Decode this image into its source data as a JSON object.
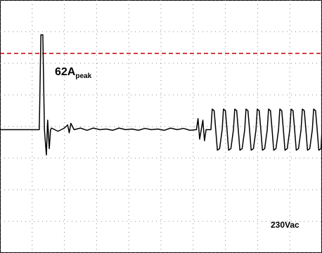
{
  "chart_data": {
    "type": "line",
    "x": [
      0,
      1.2,
      1.22,
      1.27,
      1.33,
      1.38,
      1.44,
      1.48,
      1.53,
      1.57,
      1.6,
      1.8,
      2.0,
      2.1,
      2.15,
      2.2,
      2.3,
      2.5,
      2.7,
      2.9,
      3.1,
      3.3,
      3.5,
      3.7,
      3.9,
      4.1,
      4.3,
      4.5,
      4.7,
      4.9,
      5.1,
      5.3,
      5.5,
      5.7,
      5.9,
      6.1,
      6.15,
      6.2,
      6.25,
      6.3,
      6.35,
      6.4,
      6.5,
      6.55,
      6.59,
      6.65,
      6.7,
      6.75,
      6.82,
      6.9,
      6.94,
      7.0,
      7.05,
      7.1,
      7.17,
      7.25,
      7.29,
      7.35,
      7.4,
      7.45,
      7.52,
      7.6,
      7.64,
      7.7,
      7.75,
      7.8,
      7.87,
      7.95,
      7.99,
      8.05,
      8.1,
      8.15,
      8.22,
      8.3,
      8.34,
      8.4,
      8.45,
      8.5,
      8.57,
      8.65,
      8.69,
      8.75,
      8.8,
      8.85,
      8.92,
      9.0,
      9.04,
      9.1,
      9.15,
      9.2,
      9.27,
      9.35,
      9.39,
      9.45,
      9.5,
      9.55,
      9.62,
      9.7,
      9.74,
      9.8,
      9.85,
      9.9,
      9.97,
      10.0
    ],
    "series": [
      {
        "color": "#000000",
        "values": [
          -0.1,
          -0.1,
          -0.1,
          2.9,
          2.9,
          -0.1,
          -0.9,
          0.2,
          -0.7,
          -0.1,
          -0.05,
          -0.15,
          -0.05,
          0.05,
          -0.2,
          0.1,
          -0.1,
          -0.05,
          -0.12,
          -0.05,
          -0.1,
          -0.08,
          -0.12,
          -0.05,
          -0.1,
          -0.08,
          -0.12,
          -0.06,
          -0.1,
          -0.08,
          -0.12,
          -0.05,
          -0.1,
          -0.06,
          -0.12,
          -0.1,
          0.25,
          -0.4,
          -0.1,
          0.2,
          -0.45,
          -0.1,
          -0.1,
          -0.1,
          0.55,
          0.5,
          -0.1,
          -0.75,
          -0.7,
          -0.1,
          0.55,
          0.5,
          -0.1,
          -0.75,
          -0.7,
          -0.1,
          0.55,
          0.5,
          -0.1,
          -0.75,
          -0.7,
          -0.1,
          0.55,
          0.5,
          -0.1,
          -0.75,
          -0.7,
          -0.1,
          0.55,
          0.5,
          -0.1,
          -0.75,
          -0.7,
          -0.1,
          0.55,
          0.5,
          -0.1,
          -0.75,
          -0.7,
          -0.1,
          0.55,
          0.5,
          -0.1,
          -0.75,
          -0.7,
          -0.1,
          0.55,
          0.5,
          -0.1,
          -0.75,
          -0.7,
          -0.1,
          0.55,
          0.5,
          -0.1,
          -0.75,
          -0.7,
          -0.1,
          0.55,
          0.5,
          -0.1,
          -0.75,
          -0.7,
          -0.1
        ]
      }
    ],
    "xlim": [
      0,
      10
    ],
    "ylim": [
      -4,
      4
    ],
    "xticks": [
      0,
      1,
      2,
      3,
      4,
      5,
      6,
      7,
      8,
      9,
      10
    ],
    "yticks": [
      -4,
      -3,
      -2,
      -1,
      0,
      1,
      2,
      3,
      4
    ],
    "grid": true,
    "threshold": {
      "value": 2.31,
      "color": "#c00000"
    },
    "annotations": [
      {
        "text": "62A",
        "sub": "peak"
      },
      {
        "text": "230Vac"
      }
    ]
  }
}
